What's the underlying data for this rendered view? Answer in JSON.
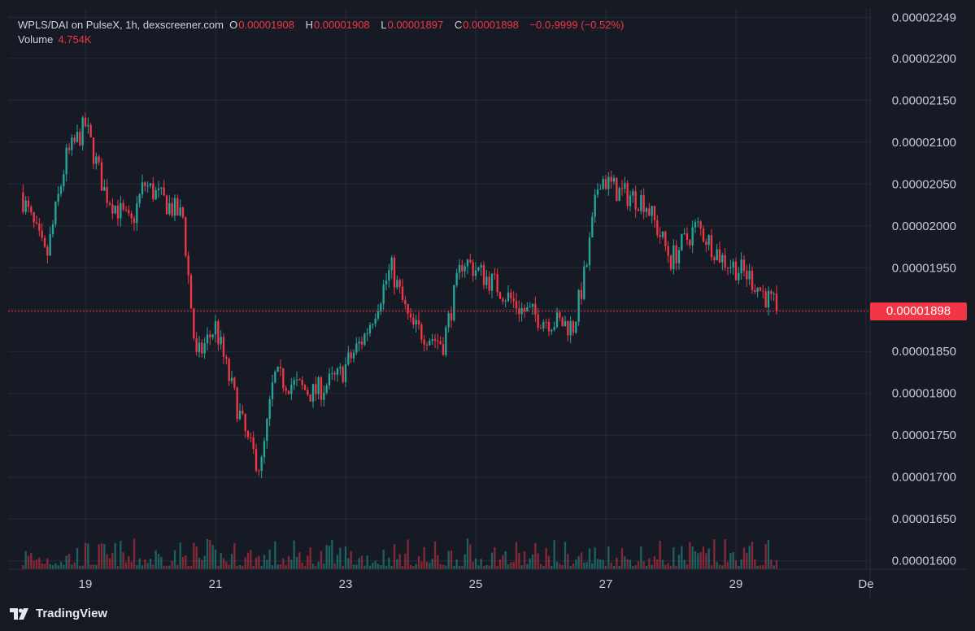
{
  "legend": {
    "title": "WPLS/DAI on PulseX, 1h, dexscreener.com",
    "o_label": "O",
    "o_value": "0.00001908",
    "h_label": "H",
    "h_value": "0.00001908",
    "l_label": "L",
    "l_value": "0.00001897",
    "c_label": "C",
    "c_value": "0.00001898",
    "change": "−0.0₇9999 (−0.52%)",
    "volume_label": "Volume",
    "volume_value": "4.754K"
  },
  "last_price_tag": "0.00001898",
  "brand": "TradingView",
  "colors": {
    "up": "#26a69a",
    "down": "#f23645",
    "grid": "#262a36",
    "bg": "#161a25"
  },
  "chart_data": {
    "type": "candlestick",
    "interval": "1h",
    "ylim": [
      1.59e-05,
      2.26e-05
    ],
    "y_ticks": [
      "0.00002249",
      "0.00002200",
      "0.00002150",
      "0.00002100",
      "0.00002050",
      "0.00002000",
      "0.00001950",
      "0.00001900",
      "0.00001850",
      "0.00001800",
      "0.00001750",
      "0.00001700",
      "0.00001650",
      "0.00001600"
    ],
    "x_ticks": [
      "19",
      "21",
      "23",
      "25",
      "27",
      "29",
      "De"
    ],
    "last_price": 1.898e-05,
    "close_path": [
      {
        "day": 18.0,
        "price": 2.04e-05
      },
      {
        "day": 18.4,
        "price": 1.96e-05
      },
      {
        "day": 18.7,
        "price": 2.08e-05
      },
      {
        "day": 19.0,
        "price": 2.12e-05
      },
      {
        "day": 19.3,
        "price": 2.04e-05
      },
      {
        "day": 19.7,
        "price": 2e-05
      },
      {
        "day": 19.9,
        "price": 2.05e-05
      },
      {
        "day": 20.5,
        "price": 2.01e-05
      },
      {
        "day": 20.7,
        "price": 1.84e-05
      },
      {
        "day": 21.0,
        "price": 1.88e-05
      },
      {
        "day": 21.2,
        "price": 1.82e-05
      },
      {
        "day": 21.5,
        "price": 1.74e-05
      },
      {
        "day": 21.7,
        "price": 1.71e-05
      },
      {
        "day": 21.9,
        "price": 1.82e-05
      },
      {
        "day": 22.5,
        "price": 1.8e-05
      },
      {
        "day": 22.9,
        "price": 1.82e-05
      },
      {
        "day": 23.3,
        "price": 1.87e-05
      },
      {
        "day": 23.7,
        "price": 1.95e-05
      },
      {
        "day": 24.0,
        "price": 1.88e-05
      },
      {
        "day": 24.5,
        "price": 1.86e-05
      },
      {
        "day": 24.8,
        "price": 1.96e-05
      },
      {
        "day": 25.3,
        "price": 1.93e-05
      },
      {
        "day": 25.7,
        "price": 1.9e-05
      },
      {
        "day": 26.0,
        "price": 1.89e-05
      },
      {
        "day": 26.5,
        "price": 1.88e-05
      },
      {
        "day": 26.7,
        "price": 1.95e-05
      },
      {
        "day": 26.9,
        "price": 2.06e-05
      },
      {
        "day": 27.2,
        "price": 2.04e-05
      },
      {
        "day": 27.6,
        "price": 2.03e-05
      },
      {
        "day": 28.0,
        "price": 1.96e-05
      },
      {
        "day": 28.4,
        "price": 2e-05
      },
      {
        "day": 28.8,
        "price": 1.96e-05
      },
      {
        "day": 29.2,
        "price": 1.94e-05
      },
      {
        "day": 29.65,
        "price": 1.898e-05
      }
    ]
  }
}
